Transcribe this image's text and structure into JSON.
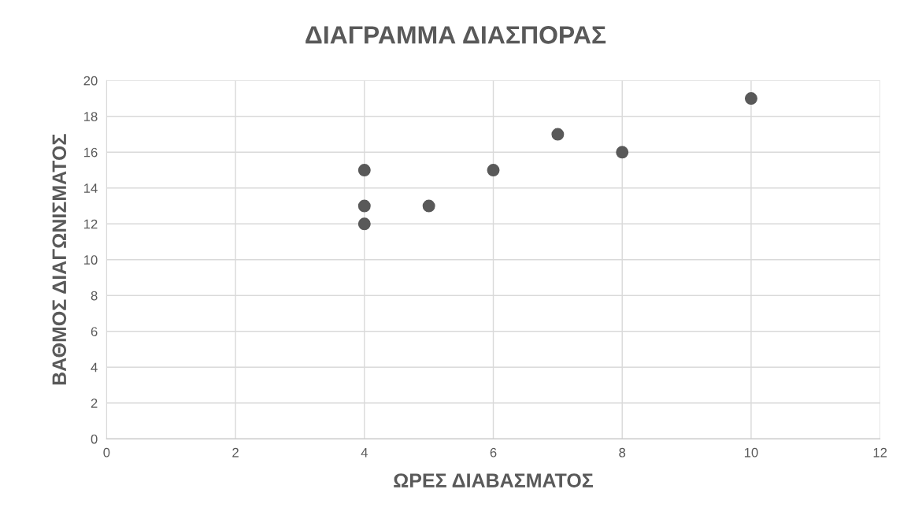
{
  "chart_data": {
    "type": "scatter",
    "title": "ΔΙΑΓΡΑΜΜΑ ΔΙΑΣΠΟΡΑΣ",
    "xlabel": "ΩΡΕΣ ΔΙΑΒΑΣΜΑΤΟΣ",
    "ylabel": "ΒΑΘΜΟΣ ΔΙΑΓΩΝΙΣΜΑΤΟΣ",
    "series": [
      {
        "color": "#595959",
        "x": [
          4,
          4,
          4,
          5,
          6,
          7,
          8,
          10
        ],
        "values": [
          15,
          13,
          12,
          13,
          15,
          17,
          16,
          19
        ]
      }
    ],
    "xlim": [
      0,
      12
    ],
    "xticks": [
      0,
      2,
      4,
      6,
      8,
      10,
      12
    ],
    "ylim": [
      0,
      20
    ],
    "yticks": [
      0,
      2,
      4,
      6,
      8,
      10,
      12,
      14,
      16,
      18,
      20
    ],
    "grid": true,
    "marker": "circle"
  }
}
